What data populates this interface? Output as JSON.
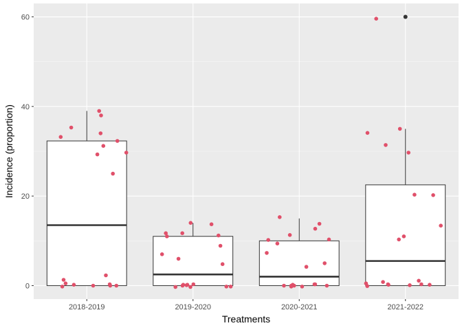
{
  "chart_data": {
    "type": "boxplot",
    "title": "",
    "xlabel": "Treatments",
    "ylabel": "Incidence (proportion)",
    "categories": [
      "2018-2019",
      "2019-2020",
      "2020-2021",
      "2021-2022"
    ],
    "ylim": [
      -3,
      63
    ],
    "yticks": [
      0,
      20,
      40,
      60
    ],
    "ytick_labels": [
      "0",
      "20",
      "40",
      "60"
    ],
    "grid": true,
    "legend": "none",
    "colors": {
      "panel": "#ebebeb",
      "grid_major": "#ffffff",
      "grid_minor": "#f5f5f5",
      "box_fill": "#ffffff",
      "box_line": "#333333",
      "point": "#e0506a",
      "outlier": "#333333"
    },
    "boxes": [
      {
        "category": "2018-2019",
        "lower_whisker": 0,
        "q1": 0,
        "median": 13.5,
        "q3": 32.3,
        "upper_whisker": 39,
        "outliers": []
      },
      {
        "category": "2019-2020",
        "lower_whisker": 0,
        "q1": 0,
        "median": 2.5,
        "q3": 11,
        "upper_whisker": 14,
        "outliers": []
      },
      {
        "category": "2020-2021",
        "lower_whisker": 0,
        "q1": 0,
        "median": 2,
        "q3": 10,
        "upper_whisker": 15,
        "outliers": []
      },
      {
        "category": "2021-2022",
        "lower_whisker": 0,
        "q1": 0,
        "median": 5.5,
        "q3": 22.5,
        "upper_whisker": 35,
        "outliers": [
          60
        ]
      }
    ],
    "points": [
      {
        "category": "2018-2019",
        "values": [
          39,
          35.3,
          29.3,
          29.7,
          38,
          34,
          33.2,
          32.3,
          31.2,
          25,
          2.3,
          0.2,
          0,
          -0.2,
          0,
          0.5,
          1.3,
          0.3,
          0
        ]
      },
      {
        "category": "2019-2020",
        "values": [
          8.9,
          7,
          14,
          13.7,
          11.7,
          -0.3,
          0,
          -0.2,
          4.8,
          0.1,
          0.2,
          11.2,
          11,
          11.7,
          6,
          0.2,
          0.3,
          -0.2,
          -0.3
        ]
      },
      {
        "category": "2020-2021",
        "values": [
          13.8,
          9.4,
          0,
          10.3,
          5,
          0,
          -0.2,
          0,
          12.7,
          10.2,
          4.2,
          7.3,
          0.3,
          -0.2,
          0.3,
          15.3,
          11.3,
          0,
          0.2
        ]
      },
      {
        "category": "2021-2022",
        "values": [
          13.4,
          35,
          34.1,
          31.4,
          59.6,
          1.1,
          0.5,
          0.2,
          0.3,
          10.3,
          0.8,
          0.2,
          11,
          29.7,
          20.2,
          20.3,
          0.3,
          -0.1,
          0.1
        ]
      }
    ]
  }
}
